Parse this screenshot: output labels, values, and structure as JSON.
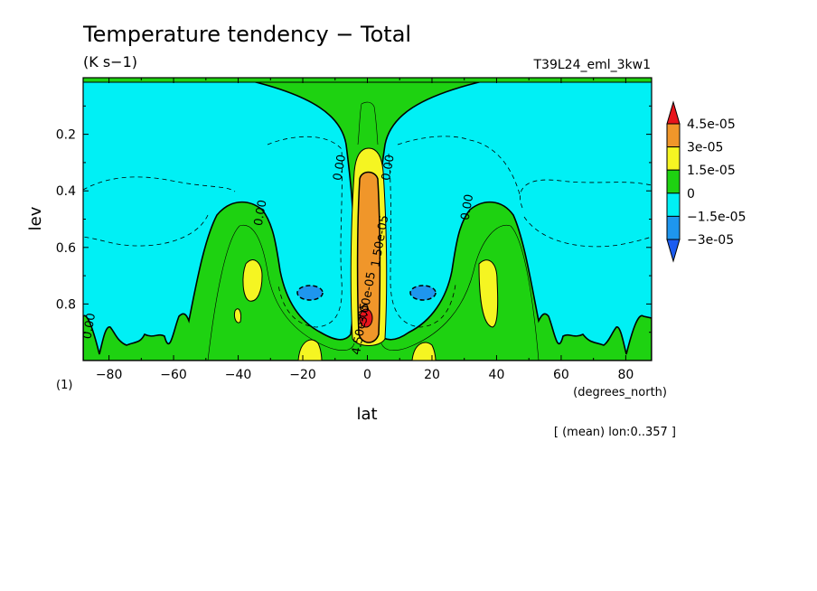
{
  "chart_data": {
    "type": "heatmap",
    "subtype": "filled-contour",
    "title": "Temperature tendency − Total",
    "units": "(K s−1)",
    "run_label": "T39L24_eml_3kw1",
    "xlabel": "lat",
    "x_units": "(degrees_north)",
    "ylabel": "lev",
    "y_units": "(1)",
    "footnote": "[ (mean) lon:0..357 ]",
    "xlim": [
      -88,
      88
    ],
    "ylim": [
      1.0,
      0.0
    ],
    "y_inverted": true,
    "x_ticks": [
      -80,
      -60,
      -40,
      -20,
      0,
      20,
      40,
      60,
      80
    ],
    "y_ticks": [
      0.2,
      0.4,
      0.6,
      0.8
    ],
    "x_tick_labels": [
      "−80",
      "−60",
      "−40",
      "−20",
      "0",
      "20",
      "40",
      "60",
      "80"
    ],
    "y_tick_labels": [
      "0.2",
      "0.4",
      "0.6",
      "0.8"
    ],
    "grid": false,
    "legend_position": "right",
    "colorbar": {
      "boundaries": [
        "4.5e-05",
        "3e-05",
        "1.5e-05",
        "0",
        "−1.5e-05",
        "−3e-05"
      ],
      "colors": [
        "#e8141c",
        "#f0962a",
        "#f5f522",
        "#1ed211",
        "#00f0f5",
        "#1e96ee",
        "#1c5cf0"
      ]
    },
    "contour_labels": [
      {
        "text": "0.00",
        "x": -7.5,
        "y": 0.32
      },
      {
        "text": "0.00",
        "x": 7.5,
        "y": 0.32
      },
      {
        "text": "0.00",
        "x": -32,
        "y": 0.48
      },
      {
        "text": "0.00",
        "x": 32,
        "y": 0.46
      },
      {
        "text": "0.00",
        "x": -85,
        "y": 0.88
      },
      {
        "text": "1.50e-05",
        "x": 5,
        "y": 0.58
      },
      {
        "text": "3.00e-05",
        "x": 1,
        "y": 0.78
      },
      {
        "text": "4.50e-05",
        "x": -1,
        "y": 0.89
      }
    ]
  }
}
